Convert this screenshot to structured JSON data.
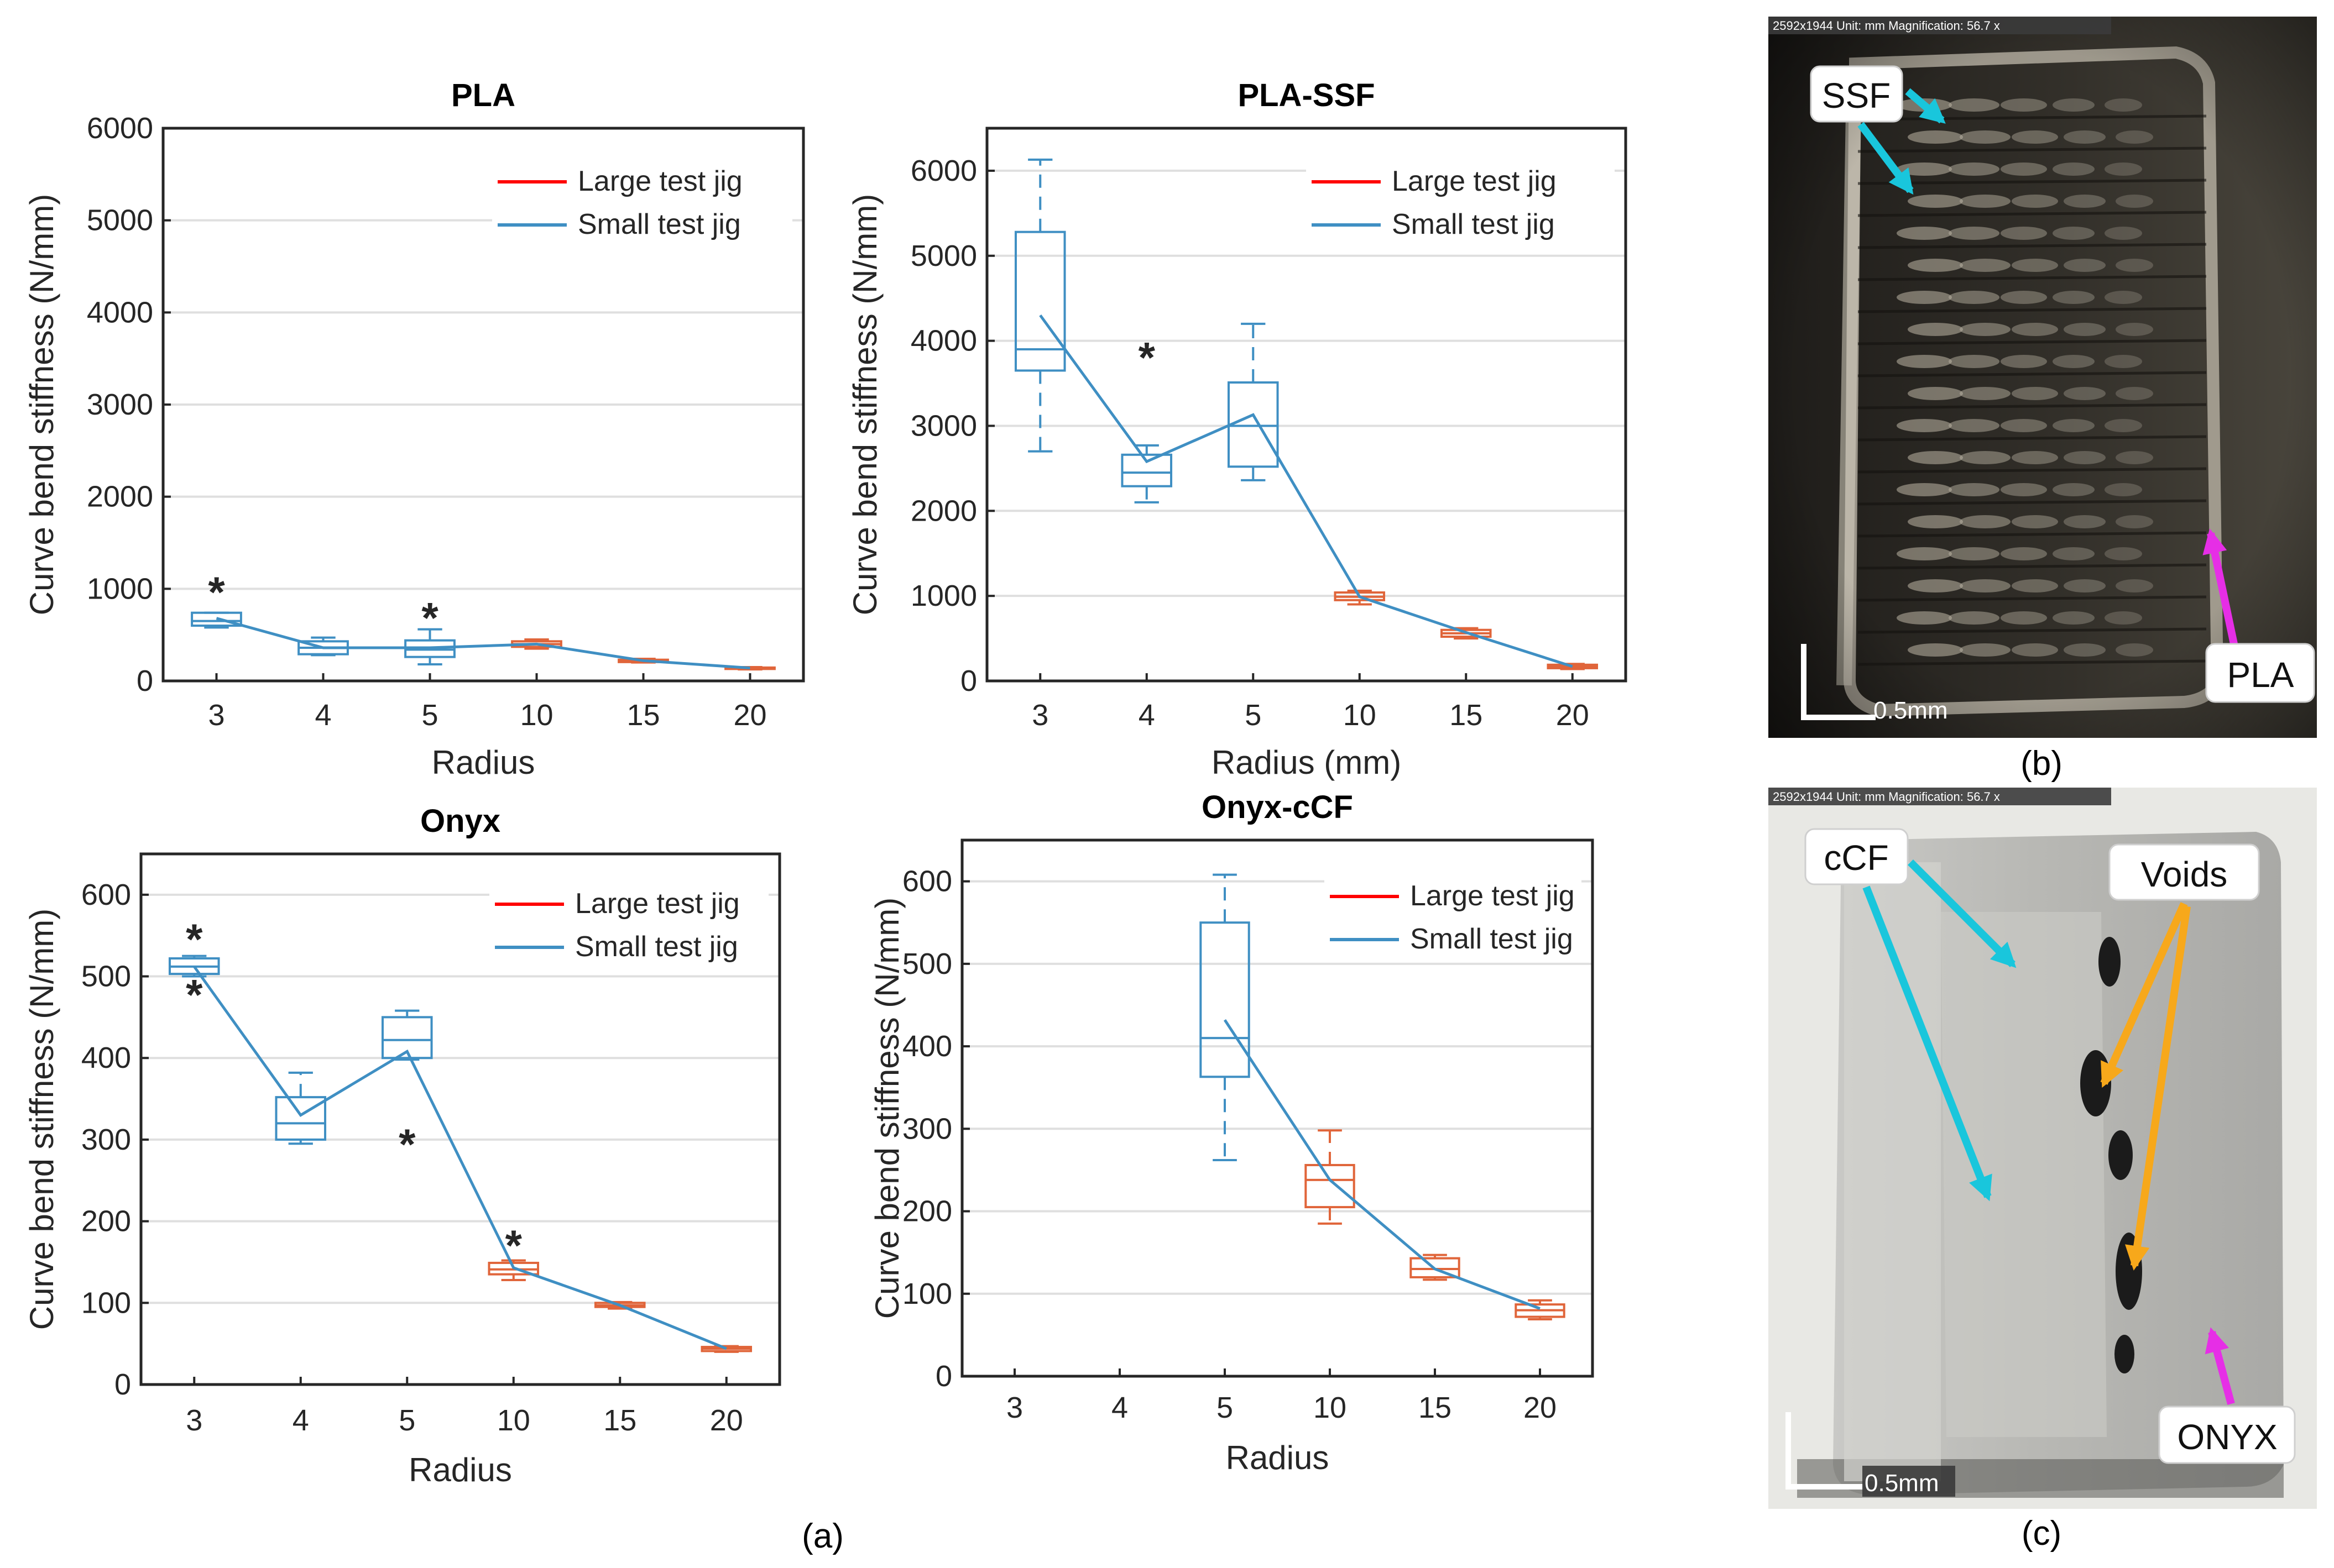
{
  "chart_data": [
    {
      "id": "pla",
      "type": "box",
      "title": "PLA",
      "xlabel": "Radius",
      "ylabel": "Curve bend stiffness (N/mm)",
      "categories": [
        "3",
        "4",
        "5",
        "10",
        "15",
        "20"
      ],
      "ylim": [
        0,
        6000
      ],
      "yticks": [
        0,
        1000,
        2000,
        3000,
        4000,
        5000,
        6000
      ],
      "grid": true,
      "legend": {
        "position": "top-right",
        "entries": [
          "Large test jig",
          "Small test jig"
        ],
        "colors": [
          "#ff0000",
          "#3f8fc3"
        ]
      },
      "boxes": [
        {
          "cat": "3",
          "series": "Small test jig",
          "min": 580,
          "q1": 600,
          "median": 650,
          "q3": 740,
          "max": 740,
          "outliers": [
            960
          ]
        },
        {
          "cat": "4",
          "series": "Small test jig",
          "min": 280,
          "q1": 290,
          "median": 360,
          "q3": 430,
          "max": 470,
          "outliers": []
        },
        {
          "cat": "5",
          "series": "Small test jig",
          "min": 180,
          "q1": 260,
          "median": 340,
          "q3": 440,
          "max": 560,
          "outliers": [
            680
          ]
        },
        {
          "cat": "10",
          "series": "Large test jig",
          "min": 350,
          "q1": 370,
          "median": 400,
          "q3": 430,
          "max": 450,
          "outliers": []
        },
        {
          "cat": "15",
          "series": "Large test jig",
          "min": 200,
          "q1": 205,
          "median": 220,
          "q3": 230,
          "max": 240,
          "outliers": []
        },
        {
          "cat": "20",
          "series": "Large test jig",
          "min": 125,
          "q1": 130,
          "median": 140,
          "q3": 145,
          "max": 150,
          "outliers": []
        }
      ],
      "mean_line": [
        680,
        360,
        360,
        400,
        220,
        140
      ]
    },
    {
      "id": "plassf",
      "type": "box",
      "title": "PLA-SSF",
      "xlabel": "Radius (mm)",
      "ylabel": "Curve bend stiffness (N/mm)",
      "categories": [
        "3",
        "4",
        "5",
        "10",
        "15",
        "20"
      ],
      "ylim": [
        0,
        6500
      ],
      "yticks": [
        0,
        1000,
        2000,
        3000,
        4000,
        5000,
        6000
      ],
      "grid": true,
      "legend": {
        "position": "top-right",
        "entries": [
          "Large test jig",
          "Small test jig"
        ],
        "colors": [
          "#ff0000",
          "#3f8fc3"
        ]
      },
      "boxes": [
        {
          "cat": "3",
          "series": "Small test jig",
          "min": 2700,
          "q1": 3650,
          "median": 3900,
          "q3": 5280,
          "max": 6130,
          "outliers": []
        },
        {
          "cat": "4",
          "series": "Small test jig",
          "min": 2100,
          "q1": 2290,
          "median": 2450,
          "q3": 2660,
          "max": 2770,
          "outliers": [
            3800
          ]
        },
        {
          "cat": "5",
          "series": "Small test jig",
          "min": 2360,
          "q1": 2520,
          "median": 3000,
          "q3": 3510,
          "max": 4200,
          "outliers": []
        },
        {
          "cat": "10",
          "series": "Large test jig",
          "min": 900,
          "q1": 950,
          "median": 990,
          "q3": 1040,
          "max": 1060,
          "outliers": []
        },
        {
          "cat": "15",
          "series": "Large test jig",
          "min": 500,
          "q1": 520,
          "median": 560,
          "q3": 600,
          "max": 620,
          "outliers": []
        },
        {
          "cat": "20",
          "series": "Large test jig",
          "min": 140,
          "q1": 150,
          "median": 170,
          "q3": 190,
          "max": 200,
          "outliers": []
        }
      ],
      "mean_line": [
        4300,
        2580,
        3130,
        990,
        570,
        170
      ]
    },
    {
      "id": "onyx",
      "type": "box",
      "title": "Onyx",
      "xlabel": "Radius",
      "ylabel": "Curve bend stiffness (N/mm)",
      "categories": [
        "3",
        "4",
        "5",
        "10",
        "15",
        "20"
      ],
      "ylim": [
        0,
        650
      ],
      "yticks": [
        0,
        100,
        200,
        300,
        400,
        500,
        600
      ],
      "grid": true,
      "legend": {
        "position": "top-right",
        "entries": [
          "Large test jig",
          "Small test jig"
        ],
        "colors": [
          "#ff0000",
          "#3f8fc3"
        ]
      },
      "boxes": [
        {
          "cat": "3",
          "series": "Small test jig",
          "min": 500,
          "q1": 503,
          "median": 512,
          "q3": 522,
          "max": 525,
          "outliers": [
            545,
            477
          ]
        },
        {
          "cat": "4",
          "series": "Small test jig",
          "min": 295,
          "q1": 300,
          "median": 320,
          "q3": 352,
          "max": 382,
          "outliers": []
        },
        {
          "cat": "5",
          "series": "Small test jig",
          "min": 398,
          "q1": 400,
          "median": 422,
          "q3": 450,
          "max": 458,
          "outliers": [
            294
          ]
        },
        {
          "cat": "10",
          "series": "Large test jig",
          "min": 128,
          "q1": 135,
          "median": 141,
          "q3": 149,
          "max": 152,
          "outliers": [
            170
          ]
        },
        {
          "cat": "15",
          "series": "Large test jig",
          "min": 93,
          "q1": 95,
          "median": 97,
          "q3": 100,
          "max": 101,
          "outliers": []
        },
        {
          "cat": "20",
          "series": "Large test jig",
          "min": 40,
          "q1": 41,
          "median": 44,
          "q3": 46,
          "max": 47,
          "outliers": []
        }
      ],
      "mean_line": [
        512,
        330,
        408,
        143,
        97,
        44
      ]
    },
    {
      "id": "onyxccf",
      "type": "box",
      "title": "Onyx-cCF",
      "xlabel": "Radius",
      "ylabel": "Curve bend stiffness (N/mm)",
      "categories": [
        "3",
        "4",
        "5",
        "10",
        "15",
        "20"
      ],
      "ylim": [
        0,
        650
      ],
      "yticks": [
        0,
        100,
        200,
        300,
        400,
        500,
        600
      ],
      "grid": true,
      "legend": {
        "position": "top-right",
        "entries": [
          "Large test jig",
          "Small test jig"
        ],
        "colors": [
          "#ff0000",
          "#3f8fc3"
        ]
      },
      "boxes": [
        {
          "cat": "5",
          "series": "Small test jig",
          "min": 262,
          "q1": 363,
          "median": 410,
          "q3": 550,
          "max": 608,
          "outliers": []
        },
        {
          "cat": "10",
          "series": "Large test jig",
          "min": 185,
          "q1": 205,
          "median": 238,
          "q3": 256,
          "max": 298,
          "outliers": []
        },
        {
          "cat": "15",
          "series": "Large test jig",
          "min": 117,
          "q1": 120,
          "median": 130,
          "q3": 143,
          "max": 147,
          "outliers": []
        },
        {
          "cat": "20",
          "series": "Large test jig",
          "min": 69,
          "q1": 72,
          "median": 80,
          "q3": 87,
          "max": 92,
          "outliers": []
        }
      ],
      "mean_line": [
        null,
        null,
        432,
        238,
        130,
        82
      ]
    }
  ],
  "captions": {
    "a": "(a)",
    "b": "(b)",
    "c": "(c)"
  },
  "micrographs": {
    "b": {
      "header": "2592x1944 Unit: mm Magnification: 56.7 x",
      "scale": "0.5mm",
      "labels": [
        "SSF",
        "PLA"
      ]
    },
    "c": {
      "header": "2592x1944 Unit: mm Magnification: 56.7 x",
      "scale": "0.5mm",
      "labels": [
        "cCF",
        "Voids",
        "ONYX"
      ]
    }
  },
  "colors": {
    "small": "#3f8fc3",
    "large": "#e0653a",
    "large_legend": "#ff0000",
    "cyan_arrow": "#19c6dc",
    "magenta_arrow": "#e62ee6",
    "orange_arrow": "#f7a81b"
  }
}
